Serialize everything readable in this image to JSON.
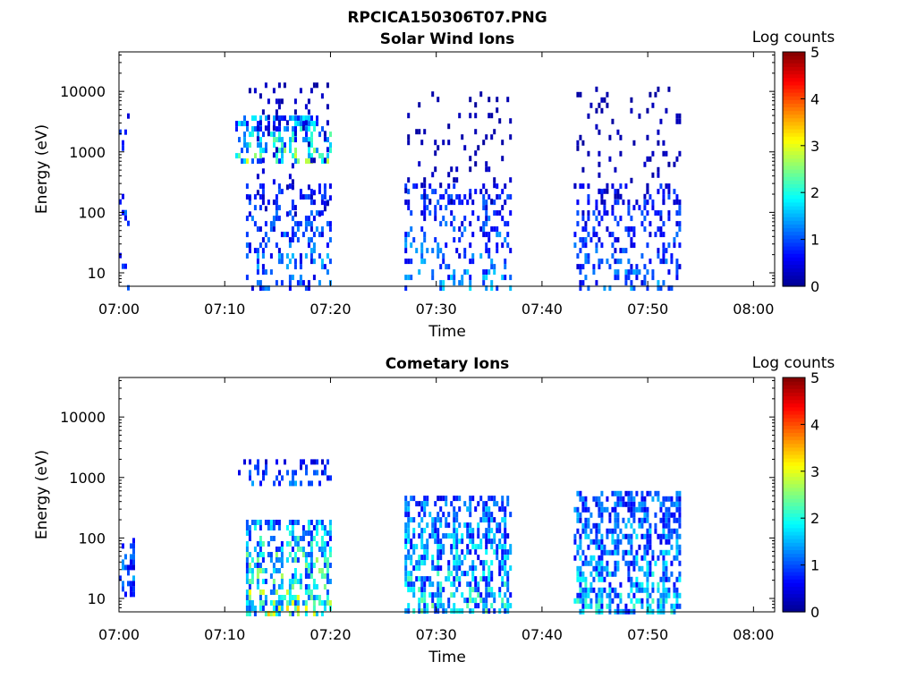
{
  "figure": {
    "title": "RPCICA150306T07.PNG"
  },
  "colormap": [
    "#00008f",
    "#0000ff",
    "#0080ff",
    "#00ffff",
    "#80ff80",
    "#ffff00",
    "#ff8000",
    "#ff0000",
    "#800000"
  ],
  "chart_data": [
    {
      "type": "heatmap",
      "title": "Solar Wind Ions",
      "xlabel": "Time",
      "ylabel": "Energy (eV)",
      "y_scale": "log",
      "xlim": [
        "07:00",
        "08:02"
      ],
      "ylim": [
        6,
        45000
      ],
      "xticks": [
        "07:00",
        "07:10",
        "07:20",
        "07:30",
        "07:40",
        "07:50",
        "08:00"
      ],
      "yticks": [
        "10",
        "100",
        "1000",
        "10000"
      ],
      "colorbar": {
        "label": "Log counts",
        "range": [
          0,
          5
        ],
        "ticks": [
          "0",
          "1",
          "2",
          "3",
          "4",
          "5"
        ]
      },
      "clusters": [
        {
          "t_start": "07:00",
          "t_end": "07:01",
          "e_min": 6,
          "e_max": 8000,
          "peak": 1.5,
          "density": 0.18
        },
        {
          "t_start": "07:11",
          "t_end": "07:20",
          "e_min": 700,
          "e_max": 4000,
          "peak": 3.2,
          "density": 0.55
        },
        {
          "t_start": "07:12",
          "t_end": "07:20",
          "e_min": 6,
          "e_max": 300,
          "peak": 1.8,
          "density": 0.3
        },
        {
          "t_start": "07:12",
          "t_end": "07:20",
          "e_min": 100,
          "e_max": 14000,
          "peak": 0.6,
          "density": 0.1
        },
        {
          "t_start": "07:27",
          "t_end": "07:37",
          "e_min": 6,
          "e_max": 300,
          "peak": 1.8,
          "density": 0.3
        },
        {
          "t_start": "07:27",
          "t_end": "07:37",
          "e_min": 150,
          "e_max": 10000,
          "peak": 0.4,
          "density": 0.1
        },
        {
          "t_start": "07:43",
          "t_end": "07:53",
          "e_min": 6,
          "e_max": 300,
          "peak": 1.6,
          "density": 0.3
        },
        {
          "t_start": "07:43",
          "t_end": "07:53",
          "e_min": 150,
          "e_max": 12000,
          "peak": 0.4,
          "density": 0.1
        }
      ]
    },
    {
      "type": "heatmap",
      "title": "Cometary Ions",
      "xlabel": "Time",
      "ylabel": "Energy (eV)",
      "y_scale": "log",
      "xlim": [
        "07:00",
        "08:02"
      ],
      "ylim": [
        6,
        45000
      ],
      "xticks": [
        "07:00",
        "07:10",
        "07:20",
        "07:30",
        "07:40",
        "07:50",
        "08:00"
      ],
      "yticks": [
        "10",
        "100",
        "1000",
        "10000"
      ],
      "colorbar": {
        "label": "Log counts",
        "range": [
          0,
          5
        ],
        "ticks": [
          "0",
          "1",
          "2",
          "3",
          "4",
          "5"
        ]
      },
      "clusters": [
        {
          "t_start": "07:00",
          "t_end": "07:01.5",
          "e_min": 12,
          "e_max": 100,
          "peak": 1.8,
          "density": 0.4
        },
        {
          "t_start": "07:11",
          "t_end": "07:20",
          "e_min": 800,
          "e_max": 2000,
          "peak": 1.6,
          "density": 0.35
        },
        {
          "t_start": "07:12",
          "t_end": "07:20",
          "e_min": 6,
          "e_max": 200,
          "peak": 3.5,
          "density": 0.55
        },
        {
          "t_start": "07:27",
          "t_end": "07:37",
          "e_min": 6,
          "e_max": 500,
          "peak": 2.6,
          "density": 0.6
        },
        {
          "t_start": "07:43",
          "t_end": "07:53",
          "e_min": 6,
          "e_max": 600,
          "peak": 2.4,
          "density": 0.6
        }
      ]
    }
  ]
}
